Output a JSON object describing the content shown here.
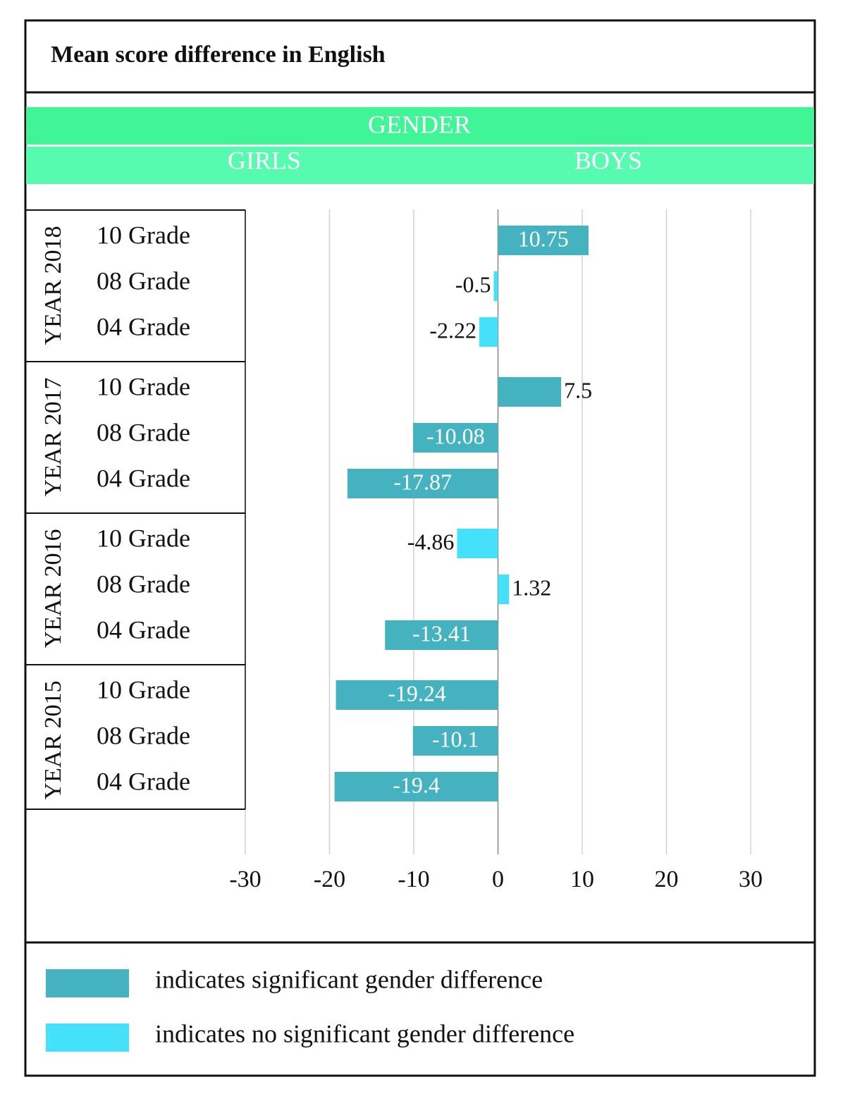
{
  "chart_data": {
    "type": "bar",
    "orientation": "horizontal",
    "title": "Mean score difference in English",
    "header": "GENDER",
    "left_label": "GIRLS",
    "right_label": "BOYS",
    "groups": [
      {
        "name": "YEAR 2018",
        "categories": [
          "10 Grade",
          "08 Grade",
          "04 Grade"
        ]
      },
      {
        "name": "YEAR 2017",
        "categories": [
          "10 Grade",
          "08 Grade",
          "04 Grade"
        ]
      },
      {
        "name": "YEAR 2016",
        "categories": [
          "10 Grade",
          "08 Grade",
          "04 Grade"
        ]
      },
      {
        "name": "YEAR 2015",
        "categories": [
          "10 Grade",
          "08 Grade",
          "04 Grade"
        ]
      }
    ],
    "series": [
      {
        "name": "indicates significant gender difference",
        "color": "#45b3bf",
        "values": [
          10.75,
          null,
          null,
          7.5,
          -10.08,
          -17.87,
          null,
          null,
          -13.41,
          -19.24,
          -10.1,
          -19.4
        ]
      },
      {
        "name": "indicates no significant gender difference",
        "color": "#45e0f9",
        "values": [
          null,
          -0.5,
          -2.22,
          null,
          null,
          null,
          -4.86,
          1.32,
          null,
          null,
          null,
          null
        ]
      }
    ],
    "xlim": [
      -30,
      30
    ],
    "xticks": [
      -30,
      -20,
      -10,
      0,
      10,
      20,
      30
    ],
    "grid": true
  }
}
